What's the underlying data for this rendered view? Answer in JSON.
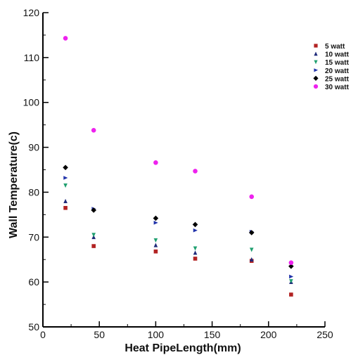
{
  "chart_data": {
    "type": "scatter",
    "title": "",
    "xlabel": "Heat PipeLength(mm)",
    "ylabel": "Wall Temperature(c)",
    "xlim": [
      0,
      250
    ],
    "ylim": [
      50,
      120
    ],
    "xticks": [
      0,
      50,
      100,
      150,
      200,
      250
    ],
    "yticks": [
      50,
      60,
      70,
      80,
      90,
      100,
      110,
      120
    ],
    "grid": false,
    "legend_position": "top-right",
    "x": [
      20,
      45,
      100,
      135,
      185,
      220
    ],
    "series": [
      {
        "name": "5 watt",
        "marker": "square",
        "color": "#b22222",
        "values": [
          76.5,
          68,
          66.8,
          65.2,
          64.7,
          57.2
        ]
      },
      {
        "name": "10 watt",
        "marker": "triangle-up",
        "color": "#1f2a7a",
        "values": [
          78,
          70,
          68.2,
          66.5,
          65,
          60
        ]
      },
      {
        "name": "15 watt",
        "marker": "triangle-down",
        "color": "#20a070",
        "values": [
          81.5,
          70.5,
          69.3,
          67.5,
          67.2,
          60.2
        ]
      },
      {
        "name": "20 watt",
        "marker": "triangle-right",
        "color": "#2233aa",
        "values": [
          83.2,
          76.3,
          73.2,
          71.5,
          71.2,
          61.2
        ]
      },
      {
        "name": "25 watt",
        "marker": "diamond",
        "color": "#000000",
        "values": [
          85.5,
          76,
          74.2,
          72.8,
          71,
          63.5
        ]
      },
      {
        "name": "30 watt",
        "marker": "circle",
        "color": "#ee22ee",
        "values": [
          114.3,
          93.8,
          86.6,
          84.7,
          79,
          64.3
        ]
      }
    ]
  }
}
